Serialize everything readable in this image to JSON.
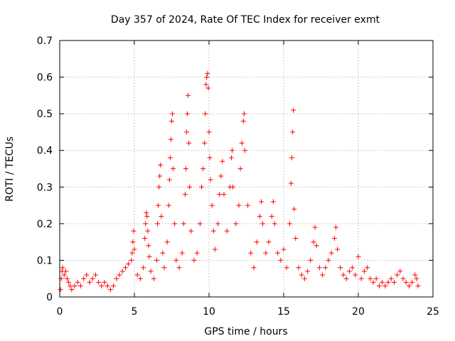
{
  "chart_data": {
    "type": "scatter",
    "title": "Day 357 of 2024, Rate Of TEC Index for receiver exmt",
    "xlabel": "GPS time / hours",
    "ylabel": "ROTI / TECUs",
    "xlim": [
      0,
      25
    ],
    "ylim": [
      0,
      0.7
    ],
    "xticks": [
      "0",
      "5",
      "10",
      "15",
      "20",
      "25"
    ],
    "yticks": [
      "0",
      "0.1",
      "0.2",
      "0.3",
      "0.4",
      "0.5",
      "0.6",
      "0.7"
    ],
    "grid": true,
    "marker": "+",
    "color": "#ff0000",
    "series": [
      {
        "values": [
          [
            0.05,
            0.02
          ],
          [
            0.1,
            0.05
          ],
          [
            0.15,
            0.07
          ],
          [
            0.2,
            0.08
          ],
          [
            0.3,
            0.06
          ],
          [
            0.4,
            0.07
          ],
          [
            0.5,
            0.05
          ],
          [
            0.6,
            0.04
          ],
          [
            0.7,
            0.03
          ],
          [
            0.8,
            0.02
          ],
          [
            1.0,
            0.03
          ],
          [
            1.2,
            0.04
          ],
          [
            1.4,
            0.03
          ],
          [
            1.6,
            0.05
          ],
          [
            1.8,
            0.06
          ],
          [
            2.0,
            0.04
          ],
          [
            2.2,
            0.05
          ],
          [
            2.4,
            0.06
          ],
          [
            2.6,
            0.04
          ],
          [
            2.8,
            0.03
          ],
          [
            3.0,
            0.04
          ],
          [
            3.2,
            0.03
          ],
          [
            3.4,
            0.02
          ],
          [
            3.6,
            0.03
          ],
          [
            3.8,
            0.05
          ],
          [
            4.0,
            0.06
          ],
          [
            4.2,
            0.07
          ],
          [
            4.4,
            0.08
          ],
          [
            4.6,
            0.09
          ],
          [
            4.8,
            0.1
          ],
          [
            4.85,
            0.12
          ],
          [
            4.9,
            0.15
          ],
          [
            4.95,
            0.18
          ],
          [
            5.0,
            0.13
          ],
          [
            5.2,
            0.06
          ],
          [
            5.4,
            0.05
          ],
          [
            5.6,
            0.08
          ],
          [
            5.7,
            0.16
          ],
          [
            5.75,
            0.2
          ],
          [
            5.8,
            0.23
          ],
          [
            5.85,
            0.22
          ],
          [
            5.9,
            0.18
          ],
          [
            5.95,
            0.14
          ],
          [
            6.0,
            0.11
          ],
          [
            6.1,
            0.07
          ],
          [
            6.3,
            0.05
          ],
          [
            6.5,
            0.1
          ],
          [
            6.55,
            0.2
          ],
          [
            6.6,
            0.25
          ],
          [
            6.65,
            0.3
          ],
          [
            6.7,
            0.33
          ],
          [
            6.75,
            0.36
          ],
          [
            6.8,
            0.22
          ],
          [
            6.9,
            0.12
          ],
          [
            7.0,
            0.08
          ],
          [
            7.2,
            0.15
          ],
          [
            7.3,
            0.25
          ],
          [
            7.35,
            0.32
          ],
          [
            7.4,
            0.38
          ],
          [
            7.45,
            0.43
          ],
          [
            7.5,
            0.48
          ],
          [
            7.55,
            0.5
          ],
          [
            7.6,
            0.35
          ],
          [
            7.7,
            0.2
          ],
          [
            7.8,
            0.1
          ],
          [
            8.0,
            0.08
          ],
          [
            8.2,
            0.12
          ],
          [
            8.3,
            0.2
          ],
          [
            8.4,
            0.28
          ],
          [
            8.45,
            0.35
          ],
          [
            8.5,
            0.45
          ],
          [
            8.55,
            0.5
          ],
          [
            8.6,
            0.55
          ],
          [
            8.65,
            0.42
          ],
          [
            8.7,
            0.3
          ],
          [
            8.8,
            0.18
          ],
          [
            9.0,
            0.1
          ],
          [
            9.2,
            0.12
          ],
          [
            9.4,
            0.2
          ],
          [
            9.5,
            0.3
          ],
          [
            9.6,
            0.35
          ],
          [
            9.7,
            0.42
          ],
          [
            9.75,
            0.5
          ],
          [
            9.8,
            0.58
          ],
          [
            9.85,
            0.6
          ],
          [
            9.9,
            0.61
          ],
          [
            9.95,
            0.57
          ],
          [
            10.0,
            0.45
          ],
          [
            10.05,
            0.38
          ],
          [
            10.1,
            0.32
          ],
          [
            10.2,
            0.25
          ],
          [
            10.3,
            0.18
          ],
          [
            10.4,
            0.13
          ],
          [
            10.6,
            0.2
          ],
          [
            10.7,
            0.28
          ],
          [
            10.8,
            0.33
          ],
          [
            10.9,
            0.37
          ],
          [
            11.0,
            0.28
          ],
          [
            11.2,
            0.18
          ],
          [
            11.4,
            0.3
          ],
          [
            11.5,
            0.38
          ],
          [
            11.55,
            0.4
          ],
          [
            11.6,
            0.3
          ],
          [
            11.8,
            0.2
          ],
          [
            12.0,
            0.25
          ],
          [
            12.1,
            0.35
          ],
          [
            12.2,
            0.42
          ],
          [
            12.3,
            0.48
          ],
          [
            12.35,
            0.5
          ],
          [
            12.4,
            0.4
          ],
          [
            12.6,
            0.25
          ],
          [
            12.8,
            0.12
          ],
          [
            13.0,
            0.08
          ],
          [
            13.2,
            0.15
          ],
          [
            13.4,
            0.22
          ],
          [
            13.5,
            0.26
          ],
          [
            13.6,
            0.2
          ],
          [
            13.8,
            0.12
          ],
          [
            14.0,
            0.15
          ],
          [
            14.2,
            0.22
          ],
          [
            14.3,
            0.26
          ],
          [
            14.4,
            0.2
          ],
          [
            14.6,
            0.12
          ],
          [
            14.8,
            0.1
          ],
          [
            15.0,
            0.13
          ],
          [
            15.2,
            0.08
          ],
          [
            15.4,
            0.2
          ],
          [
            15.5,
            0.31
          ],
          [
            15.55,
            0.38
          ],
          [
            15.6,
            0.45
          ],
          [
            15.65,
            0.51
          ],
          [
            15.7,
            0.24
          ],
          [
            15.8,
            0.16
          ],
          [
            16.0,
            0.08
          ],
          [
            16.2,
            0.06
          ],
          [
            16.4,
            0.05
          ],
          [
            16.6,
            0.07
          ],
          [
            16.8,
            0.1
          ],
          [
            17.0,
            0.15
          ],
          [
            17.1,
            0.19
          ],
          [
            17.2,
            0.14
          ],
          [
            17.4,
            0.08
          ],
          [
            17.6,
            0.06
          ],
          [
            17.8,
            0.08
          ],
          [
            18.0,
            0.1
          ],
          [
            18.2,
            0.12
          ],
          [
            18.4,
            0.16
          ],
          [
            18.5,
            0.19
          ],
          [
            18.6,
            0.13
          ],
          [
            18.8,
            0.08
          ],
          [
            19.0,
            0.06
          ],
          [
            19.2,
            0.05
          ],
          [
            19.4,
            0.07
          ],
          [
            19.6,
            0.08
          ],
          [
            19.8,
            0.06
          ],
          [
            20.0,
            0.11
          ],
          [
            20.2,
            0.05
          ],
          [
            20.4,
            0.07
          ],
          [
            20.6,
            0.08
          ],
          [
            20.8,
            0.05
          ],
          [
            21.0,
            0.04
          ],
          [
            21.2,
            0.05
          ],
          [
            21.4,
            0.03
          ],
          [
            21.6,
            0.04
          ],
          [
            21.8,
            0.03
          ],
          [
            22.0,
            0.04
          ],
          [
            22.2,
            0.05
          ],
          [
            22.4,
            0.04
          ],
          [
            22.6,
            0.06
          ],
          [
            22.8,
            0.07
          ],
          [
            23.0,
            0.05
          ],
          [
            23.2,
            0.04
          ],
          [
            23.4,
            0.03
          ],
          [
            23.6,
            0.04
          ],
          [
            23.8,
            0.06
          ],
          [
            23.9,
            0.05
          ],
          [
            24.0,
            0.03
          ]
        ]
      }
    ]
  }
}
